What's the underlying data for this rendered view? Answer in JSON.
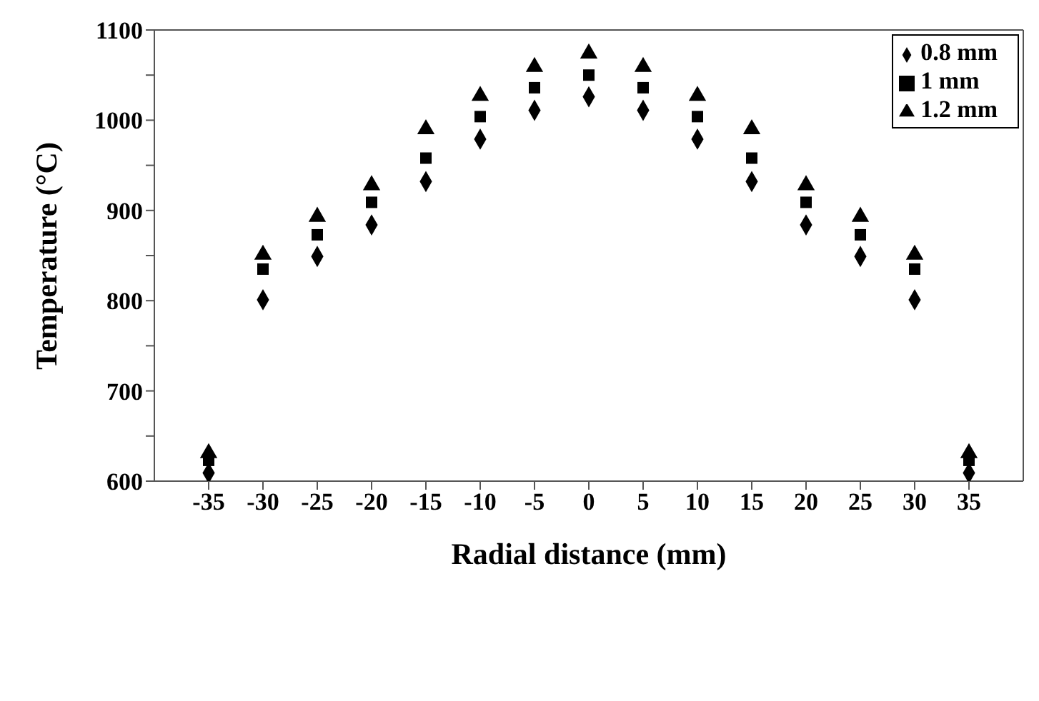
{
  "chart_data": {
    "type": "scatter",
    "xlabel": "Radial distance (mm)",
    "ylabel": "Temperature (°C)",
    "x": [
      -35,
      -30,
      -25,
      -20,
      -15,
      -10,
      -5,
      0,
      5,
      10,
      15,
      20,
      25,
      30,
      35
    ],
    "series": [
      {
        "name": "0.8 mm",
        "color": "#000000",
        "marker": "diamond",
        "values": [
          609,
          801,
          849,
          884,
          932,
          979,
          1011,
          1026,
          1011,
          979,
          932,
          884,
          849,
          801,
          609
        ]
      },
      {
        "name": "1 mm",
        "color": "#000000",
        "marker": "square",
        "values": [
          623,
          835,
          873,
          909,
          958,
          1004,
          1036,
          1050,
          1036,
          1004,
          958,
          909,
          873,
          835,
          623
        ]
      },
      {
        "name": "1.2 mm",
        "color": "#000000",
        "marker": "triangle",
        "values": [
          631,
          851,
          893,
          928,
          990,
          1027,
          1059,
          1074,
          1059,
          1027,
          990,
          928,
          893,
          851,
          631
        ]
      }
    ],
    "xlim": [
      -40,
      40
    ],
    "xticks": [
      -35,
      -30,
      -25,
      -20,
      -15,
      -10,
      -5,
      0,
      5,
      10,
      15,
      20,
      25,
      30,
      35
    ],
    "ylim": [
      600,
      1100
    ],
    "yticks": [
      600,
      {
        "value": 650,
        "label": null
      },
      700,
      {
        "value": 750,
        "label": null
      },
      800,
      {
        "value": 850,
        "label": null
      },
      900,
      {
        "value": 950,
        "label": null
      },
      1000,
      {
        "value": 1050,
        "label": null
      },
      1100
    ],
    "legend": "top right"
  }
}
